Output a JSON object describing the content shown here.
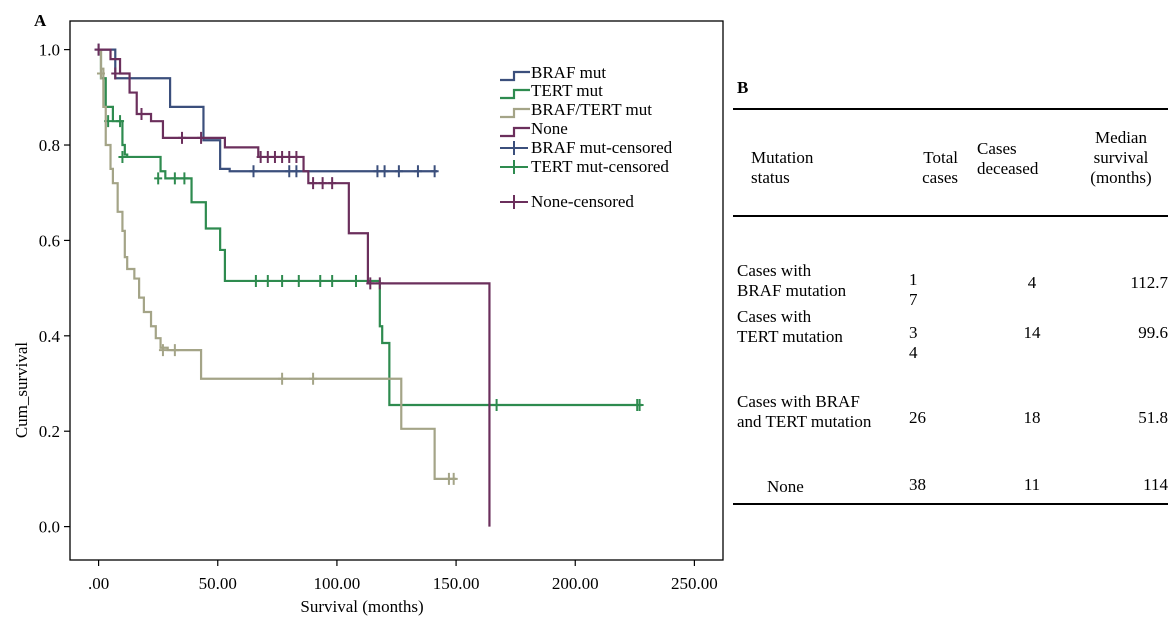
{
  "panel_a_label": "A",
  "panel_b_label": "B",
  "chart_data": {
    "type": "line",
    "subtype": "kaplan-meier",
    "xlabel": "Survival (months)",
    "ylabel": "Cum_survival",
    "xlim": [
      -12,
      262
    ],
    "ylim": [
      -0.07,
      1.06
    ],
    "xticks": [
      0,
      50,
      100,
      150,
      200,
      250
    ],
    "xtick_labels": [
      ".00",
      "50.00",
      "100.00",
      "150.00",
      "200.00",
      "250.00"
    ],
    "yticks": [
      0.0,
      0.2,
      0.4,
      0.6,
      0.8,
      1.0
    ],
    "ytick_labels": [
      "0.0",
      "0.2",
      "0.4",
      "0.6",
      "0.8",
      "1.0"
    ],
    "grid": false,
    "legend_position": "top-right",
    "legend": [
      "BRAF mut",
      "TERT mut",
      "BRAF/TERT mut",
      "None",
      "BRAF mut-censored",
      "TERT mut-censored",
      "None-censored"
    ],
    "colors": {
      "BRAF mut": "#3b4f7c",
      "TERT mut": "#2e8b4f",
      "BRAF/TERT mut": "#a4a487",
      "None": "#6b2f5c"
    },
    "series": [
      {
        "name": "BRAF mut",
        "steps": [
          [
            0,
            1.0
          ],
          [
            7,
            0.94
          ],
          [
            30,
            0.88
          ],
          [
            31,
            0.88
          ],
          [
            44,
            0.81
          ],
          [
            51,
            0.75
          ],
          [
            55,
            0.745
          ],
          [
            142,
            0.745
          ]
        ],
        "censored": [
          [
            0,
            1.0
          ],
          [
            65,
            0.745
          ],
          [
            80,
            0.745
          ],
          [
            83,
            0.745
          ],
          [
            117,
            0.745
          ],
          [
            120,
            0.745
          ],
          [
            126,
            0.745
          ],
          [
            134,
            0.745
          ],
          [
            141,
            0.745
          ]
        ]
      },
      {
        "name": "TERT mut",
        "steps": [
          [
            0,
            1.0
          ],
          [
            1,
            0.94
          ],
          [
            3,
            0.88
          ],
          [
            6,
            0.85
          ],
          [
            9,
            0.85
          ],
          [
            10,
            0.8
          ],
          [
            11,
            0.78
          ],
          [
            12,
            0.775
          ],
          [
            26,
            0.745
          ],
          [
            28,
            0.73
          ],
          [
            38,
            0.73
          ],
          [
            39,
            0.68
          ],
          [
            45,
            0.625
          ],
          [
            51,
            0.58
          ],
          [
            53,
            0.515
          ],
          [
            117,
            0.515
          ],
          [
            118,
            0.42
          ],
          [
            119,
            0.385
          ],
          [
            122,
            0.255
          ],
          [
            228,
            0.255
          ]
        ],
        "censored": [
          [
            4,
            0.85
          ],
          [
            9,
            0.85
          ],
          [
            10,
            0.775
          ],
          [
            25,
            0.73
          ],
          [
            32,
            0.73
          ],
          [
            36,
            0.73
          ],
          [
            66,
            0.515
          ],
          [
            71,
            0.515
          ],
          [
            77,
            0.515
          ],
          [
            84,
            0.515
          ],
          [
            93,
            0.515
          ],
          [
            98,
            0.515
          ],
          [
            108,
            0.515
          ],
          [
            167,
            0.255
          ],
          [
            226,
            0.255
          ],
          [
            227,
            0.255
          ]
        ]
      },
      {
        "name": "BRAF/TERT mut",
        "steps": [
          [
            0,
            1.0
          ],
          [
            1,
            0.96
          ],
          [
            2,
            0.88
          ],
          [
            3,
            0.8
          ],
          [
            5,
            0.75
          ],
          [
            6,
            0.72
          ],
          [
            8,
            0.66
          ],
          [
            10,
            0.62
          ],
          [
            11,
            0.565
          ],
          [
            12,
            0.54
          ],
          [
            15,
            0.52
          ],
          [
            17,
            0.48
          ],
          [
            19,
            0.45
          ],
          [
            22,
            0.42
          ],
          [
            24,
            0.395
          ],
          [
            26,
            0.375
          ],
          [
            29,
            0.37
          ],
          [
            43,
            0.31
          ],
          [
            125,
            0.31
          ],
          [
            127,
            0.205
          ],
          [
            141,
            0.1
          ],
          [
            150,
            0.1
          ]
        ],
        "censored": [
          [
            1,
            0.95
          ],
          [
            27,
            0.37
          ],
          [
            32,
            0.37
          ],
          [
            77,
            0.31
          ],
          [
            90,
            0.31
          ],
          [
            147,
            0.1
          ],
          [
            149,
            0.1
          ]
        ]
      },
      {
        "name": "None",
        "steps": [
          [
            0,
            1.0
          ],
          [
            5,
            0.98
          ],
          [
            9,
            0.95
          ],
          [
            13,
            0.91
          ],
          [
            16,
            0.865
          ],
          [
            22,
            0.85
          ],
          [
            27,
            0.815
          ],
          [
            41,
            0.815
          ],
          [
            53,
            0.795
          ],
          [
            55,
            0.795
          ],
          [
            67,
            0.775
          ],
          [
            85,
            0.775
          ],
          [
            86,
            0.745
          ],
          [
            88,
            0.72
          ],
          [
            102,
            0.72
          ],
          [
            105,
            0.615
          ],
          [
            112,
            0.615
          ],
          [
            113,
            0.51
          ],
          [
            164,
            0.51
          ],
          [
            164,
            0.0
          ]
        ],
        "censored": [
          [
            0,
            1.0
          ],
          [
            7,
            0.95
          ],
          [
            18,
            0.865
          ],
          [
            35,
            0.815
          ],
          [
            43,
            0.815
          ],
          [
            68,
            0.775
          ],
          [
            71,
            0.775
          ],
          [
            74,
            0.775
          ],
          [
            77,
            0.775
          ],
          [
            80,
            0.775
          ],
          [
            83,
            0.775
          ],
          [
            90,
            0.72
          ],
          [
            94,
            0.72
          ],
          [
            98,
            0.72
          ],
          [
            114,
            0.51
          ],
          [
            118,
            0.51
          ]
        ]
      }
    ]
  },
  "table": {
    "headers": {
      "status": "Mutation\nstatus",
      "total": "Total\ncases",
      "deceased": "Cases\ndeceased",
      "median": "Median\nsurvival\n(months)"
    },
    "rows": [
      {
        "status": "Cases with\nBRAF mutation",
        "total": "1\n7",
        "deceased": "4",
        "median": "112.7"
      },
      {
        "status": "Cases with\nTERT mutation",
        "total": "3\n4",
        "deceased": "14",
        "median": "99.6"
      },
      {
        "status": "Cases with BRAF\nand TERT mutation",
        "total": "26",
        "deceased": "18",
        "median": "51.8"
      },
      {
        "status": "None",
        "total": "38",
        "deceased": "11",
        "median": "114"
      }
    ]
  }
}
